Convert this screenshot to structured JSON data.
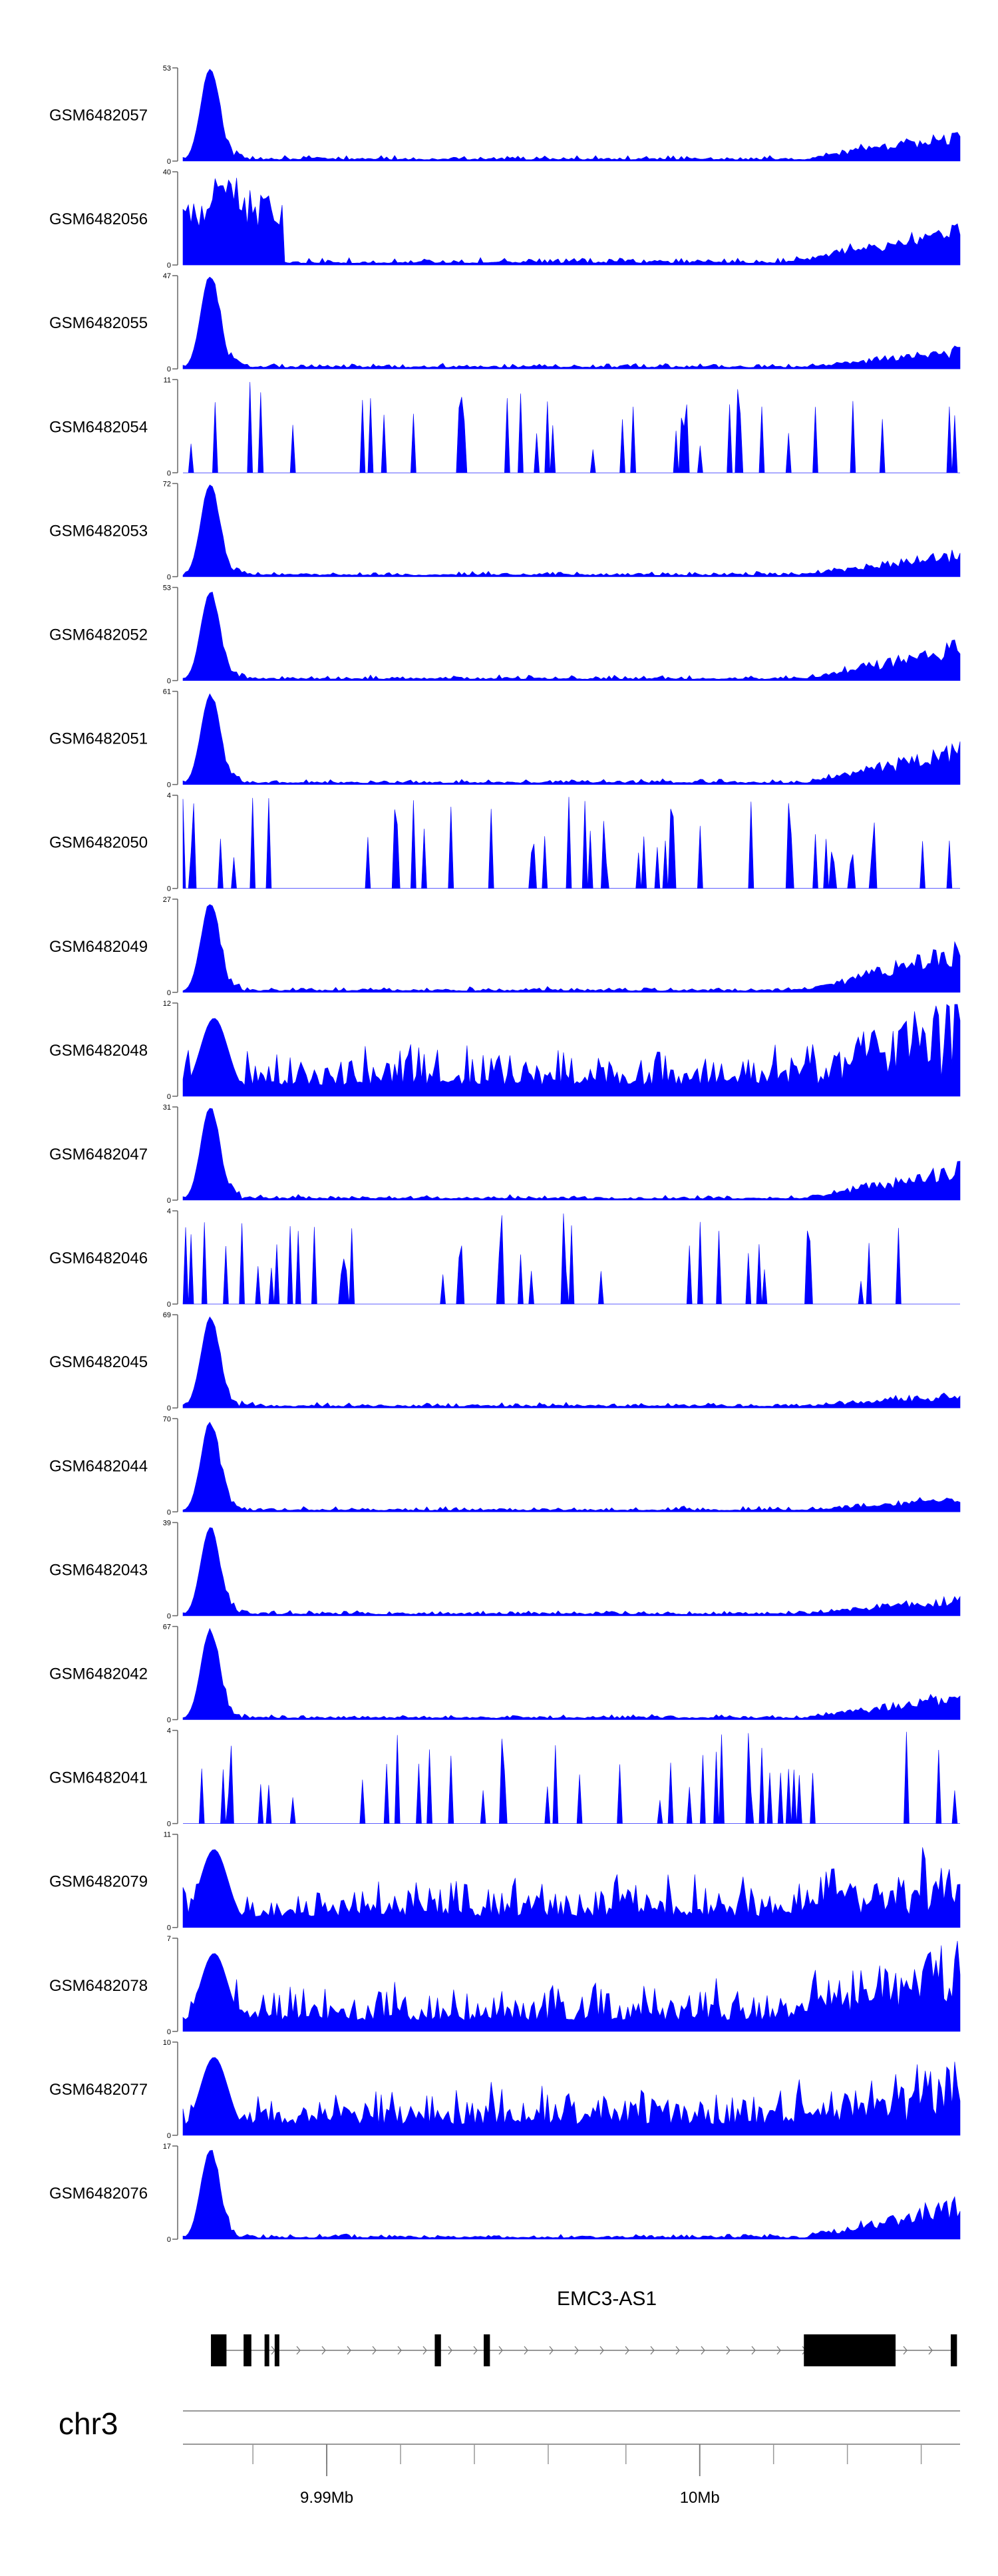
{
  "chart_data": {
    "type": "area",
    "series_color": "#0000FF",
    "tracks": [
      {
        "name": "GSM6482057",
        "ymax": 53,
        "ymin": 0,
        "profile": "early-peak-late-rise",
        "peak_frac": 1.0,
        "tail_frac": 0.35
      },
      {
        "name": "GSM6482056",
        "ymax": 40,
        "ymin": 0,
        "profile": "broad-early-late-rise",
        "peak_frac": 1.0,
        "tail_frac": 0.45
      },
      {
        "name": "GSM6482055",
        "ymax": 47,
        "ymin": 0,
        "profile": "early-peak-late-rise",
        "peak_frac": 1.0,
        "tail_frac": 0.22
      },
      {
        "name": "GSM6482054",
        "ymax": 11,
        "ymin": 0,
        "profile": "sparse-spiky",
        "peak_frac": 1.0,
        "tail_frac": 0.45
      },
      {
        "name": "GSM6482053",
        "ymax": 72,
        "ymin": 0,
        "profile": "early-peak-late-rise",
        "peak_frac": 1.0,
        "tail_frac": 0.3
      },
      {
        "name": "GSM6482052",
        "ymax": 53,
        "ymin": 0,
        "profile": "early-peak-late-rise",
        "peak_frac": 0.95,
        "tail_frac": 0.45
      },
      {
        "name": "GSM6482051",
        "ymax": 61,
        "ymin": 0,
        "profile": "early-peak-late-rise",
        "peak_frac": 0.95,
        "tail_frac": 0.45
      },
      {
        "name": "GSM6482050",
        "ymax": 4,
        "ymin": 0,
        "profile": "sparse-spiky",
        "peak_frac": 1.0,
        "tail_frac": 0.7
      },
      {
        "name": "GSM6482049",
        "ymax": 27,
        "ymin": 0,
        "profile": "early-peak-late-rise",
        "peak_frac": 0.95,
        "tail_frac": 0.55
      },
      {
        "name": "GSM6482048",
        "ymax": 12,
        "ymin": 0,
        "profile": "dense-noisy",
        "peak_frac": 0.95,
        "tail_frac": 0.95
      },
      {
        "name": "GSM6482047",
        "ymax": 31,
        "ymin": 0,
        "profile": "early-peak-late-rise",
        "peak_frac": 1.0,
        "tail_frac": 0.4
      },
      {
        "name": "GSM6482046",
        "ymax": 4,
        "ymin": 0,
        "profile": "sparse-spiky",
        "peak_frac": 1.0,
        "tail_frac": 0.8
      },
      {
        "name": "GSM6482045",
        "ymax": 69,
        "ymin": 0,
        "profile": "early-peak-late-rise",
        "peak_frac": 0.95,
        "tail_frac": 0.15
      },
      {
        "name": "GSM6482044",
        "ymax": 70,
        "ymin": 0,
        "profile": "early-peak-late-rise",
        "peak_frac": 0.95,
        "tail_frac": 0.15
      },
      {
        "name": "GSM6482043",
        "ymax": 39,
        "ymin": 0,
        "profile": "early-peak-late-rise",
        "peak_frac": 0.95,
        "tail_frac": 0.2
      },
      {
        "name": "GSM6482042",
        "ymax": 67,
        "ymin": 0,
        "profile": "early-peak-late-rise",
        "peak_frac": 0.95,
        "tail_frac": 0.3
      },
      {
        "name": "GSM6482041",
        "ymax": 4,
        "ymin": 0,
        "profile": "sparse-spiky",
        "peak_frac": 1.0,
        "tail_frac": 0.8
      },
      {
        "name": "GSM6482079",
        "ymax": 11,
        "ymin": 0,
        "profile": "dense-noisy",
        "peak_frac": 1.0,
        "tail_frac": 0.6
      },
      {
        "name": "GSM6482078",
        "ymax": 7,
        "ymin": 0,
        "profile": "dense-noisy",
        "peak_frac": 1.0,
        "tail_frac": 0.75
      },
      {
        "name": "GSM6482077",
        "ymax": 10,
        "ymin": 0,
        "profile": "dense-noisy",
        "peak_frac": 1.0,
        "tail_frac": 0.55
      },
      {
        "name": "GSM6482076",
        "ymax": 17,
        "ymin": 0,
        "profile": "early-peak-late-rise",
        "peak_frac": 0.95,
        "tail_frac": 0.45
      }
    ],
    "gene": {
      "name": "EMC3-AS1",
      "strand": "+",
      "exons_relative": [
        [
          0.036,
          0.056
        ],
        [
          0.078,
          0.088
        ],
        [
          0.105,
          0.111
        ],
        [
          0.118,
          0.124
        ],
        [
          0.324,
          0.332
        ],
        [
          0.387,
          0.395
        ],
        [
          0.799,
          0.917
        ],
        [
          0.988,
          0.996
        ]
      ]
    },
    "axis": {
      "chromosome": "chr3",
      "tick_labels": [
        "9.99Mb",
        "10Mb"
      ],
      "tick_positions_relative": [
        0.185,
        0.665
      ],
      "minor_ticks_relative": [
        0.09,
        0.185,
        0.28,
        0.375,
        0.47,
        0.57,
        0.665,
        0.76,
        0.855,
        0.95
      ]
    }
  }
}
